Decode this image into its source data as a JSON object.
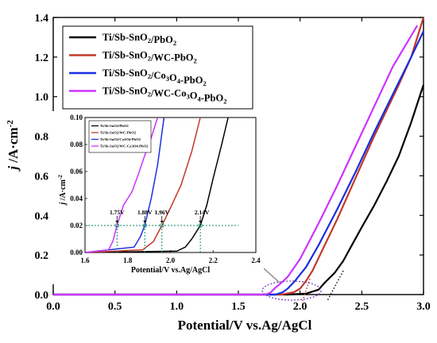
{
  "chart_data": {
    "type": "line",
    "xlabel": "Potential/V vs.Ag/AgCl",
    "ylabel_main": "j",
    "ylabel_unit": "/A·cm",
    "ylabel_exp": "-2",
    "xlim": [
      0,
      3.0
    ],
    "ylim": [
      0,
      1.4
    ],
    "xticks": [
      "0.0",
      "0.5",
      "1.0",
      "1.5",
      "2.0",
      "2.5",
      "3.0"
    ],
    "yticks": [
      "0.0",
      "0.2",
      "0.4",
      "0.6",
      "0.8",
      "1.0",
      "1.2",
      "1.4"
    ],
    "legend_position": "top-left",
    "series": [
      {
        "name": "Ti/Sb-SnO2/PbO2",
        "name_parts": [
          "Ti/Sb-SnO",
          "2",
          "/PbO",
          "2",
          "",
          "",
          "",
          ""
        ],
        "color": "#000000",
        "points": [
          [
            0,
            0
          ],
          [
            1.9,
            0.0
          ],
          [
            2.05,
            0.005
          ],
          [
            2.15,
            0.025
          ],
          [
            2.2,
            0.06
          ],
          [
            2.28,
            0.11
          ],
          [
            2.35,
            0.17
          ],
          [
            2.42,
            0.25
          ],
          [
            2.5,
            0.34
          ],
          [
            2.6,
            0.45
          ],
          [
            2.7,
            0.57
          ],
          [
            2.8,
            0.7
          ],
          [
            2.9,
            0.87
          ],
          [
            3.0,
            1.06
          ]
        ]
      },
      {
        "name": "Ti/Sb-SnO2/WC-PbO2",
        "name_parts": [
          "Ti/Sb-SnO",
          "2",
          "/WC-PbO",
          "2",
          "",
          "",
          "",
          ""
        ],
        "color": "#c0392b",
        "points": [
          [
            0,
            0
          ],
          [
            1.85,
            0.0
          ],
          [
            1.95,
            0.012
          ],
          [
            2.0,
            0.03
          ],
          [
            2.05,
            0.07
          ],
          [
            2.1,
            0.12
          ],
          [
            2.2,
            0.25
          ],
          [
            2.3,
            0.38
          ],
          [
            2.4,
            0.52
          ],
          [
            2.5,
            0.66
          ],
          [
            2.6,
            0.8
          ],
          [
            2.7,
            0.93
          ],
          [
            2.8,
            1.06
          ],
          [
            2.9,
            1.2
          ],
          [
            3.0,
            1.4
          ]
        ]
      },
      {
        "name": "Ti/Sb-SnO2/Co3O4-PbO2",
        "name_parts": [
          "Ti/Sb-SnO",
          "2",
          "/Co",
          "3",
          "O",
          "4",
          "-PbO",
          "2"
        ],
        "color": "#1a2ee0",
        "points": [
          [
            0,
            0
          ],
          [
            1.8,
            0.0
          ],
          [
            1.86,
            0.012
          ],
          [
            1.9,
            0.03
          ],
          [
            1.96,
            0.07
          ],
          [
            2.05,
            0.14
          ],
          [
            2.15,
            0.25
          ],
          [
            2.3,
            0.43
          ],
          [
            2.45,
            0.62
          ],
          [
            2.6,
            0.82
          ],
          [
            2.75,
            1.01
          ],
          [
            2.9,
            1.2
          ],
          [
            3.0,
            1.33
          ]
        ]
      },
      {
        "name": "Ti/Sb-SnO2/WC-Co3O4-PbO2",
        "name_parts": [
          "Ti/Sb-SnO",
          "2",
          "/WC-Co",
          "3",
          "O",
          "4",
          "-PbO",
          "2"
        ],
        "color": "#cc33ff",
        "points": [
          [
            0,
            0
          ],
          [
            1.72,
            0.0
          ],
          [
            1.76,
            0.01
          ],
          [
            1.8,
            0.035
          ],
          [
            1.85,
            0.06
          ],
          [
            1.9,
            0.09
          ],
          [
            2.0,
            0.18
          ],
          [
            2.15,
            0.36
          ],
          [
            2.3,
            0.55
          ],
          [
            2.45,
            0.75
          ],
          [
            2.6,
            0.95
          ],
          [
            2.75,
            1.15
          ],
          [
            2.95,
            1.36
          ]
        ]
      }
    ],
    "inset": {
      "xlabel": "Potential/V vs.Ag/AgCl",
      "ylabel_main": "j",
      "ylabel_unit": "/A·cm",
      "ylabel_exp": "-2",
      "xlim": [
        1.6,
        2.4
      ],
      "ylim": [
        0,
        0.1
      ],
      "xticks": [
        "1.6",
        "1.8",
        "2.0",
        "2.2",
        "2.4"
      ],
      "yticks": [
        "0.00",
        "0.02",
        "0.04",
        "0.06",
        "0.08",
        "0.10"
      ],
      "threshold_y": 0.02,
      "annotations": [
        {
          "label": "1.75V",
          "x": 1.75
        },
        {
          "label": "1.88V",
          "x": 1.88
        },
        {
          "label": "1.96V",
          "x": 1.96
        },
        {
          "label": "2.14V",
          "x": 2.14
        }
      ],
      "series": [
        {
          "name": "Ti/Sb-SnO2/PbO2",
          "color": "#000000",
          "points": [
            [
              1.6,
              0
            ],
            [
              2.03,
              0.001
            ],
            [
              2.07,
              0.004
            ],
            [
              2.1,
              0.01
            ],
            [
              2.14,
              0.02
            ],
            [
              2.17,
              0.035
            ],
            [
              2.2,
              0.055
            ],
            [
              2.24,
              0.08
            ],
            [
              2.27,
              0.1
            ]
          ]
        },
        {
          "name": "Ti/Sb-SnO2/WC-PbO2",
          "color": "#c0392b",
          "points": [
            [
              1.6,
              0
            ],
            [
              1.87,
              0.002
            ],
            [
              1.92,
              0.008
            ],
            [
              1.96,
              0.02
            ],
            [
              2.0,
              0.033
            ],
            [
              2.05,
              0.05
            ],
            [
              2.1,
              0.075
            ],
            [
              2.14,
              0.1
            ]
          ]
        },
        {
          "name": "Ti/Sb-SnO2/Co3O4-PbO2",
          "color": "#1a2ee0",
          "points": [
            [
              1.6,
              0
            ],
            [
              1.83,
              0.004
            ],
            [
              1.86,
              0.012
            ],
            [
              1.88,
              0.02
            ],
            [
              1.91,
              0.04
            ],
            [
              1.94,
              0.065
            ],
            [
              1.97,
              0.1
            ]
          ]
        },
        {
          "name": "Ti/Sb-SnO2/WC-Co3O4-PbO2",
          "color": "#cc33ff",
          "points": [
            [
              1.6,
              0
            ],
            [
              1.71,
              0.002
            ],
            [
              1.73,
              0.008
            ],
            [
              1.75,
              0.02
            ],
            [
              1.78,
              0.035
            ],
            [
              1.82,
              0.045
            ],
            [
              1.85,
              0.058
            ],
            [
              1.88,
              0.072
            ],
            [
              1.91,
              0.085
            ],
            [
              1.94,
              0.1
            ]
          ]
        }
      ]
    },
    "extrapolation_lines": [
      {
        "color": "#000000",
        "from": [
          2.35,
          0.12
        ],
        "to": [
          2.22,
          0.0
        ]
      },
      {
        "color": "#c0392b",
        "from": [
          2.08,
          0.08
        ],
        "to": [
          2.02,
          0.0
        ]
      }
    ]
  }
}
